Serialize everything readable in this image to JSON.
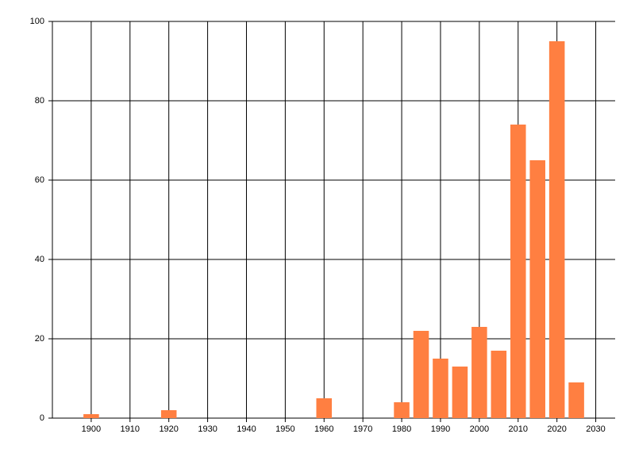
{
  "chart_data": {
    "type": "bar",
    "x": [
      1900,
      1920,
      1960,
      1980,
      1985,
      1990,
      1995,
      2000,
      2005,
      2010,
      2015,
      2020,
      2025
    ],
    "values": [
      1,
      2,
      5,
      4,
      22,
      15,
      13,
      23,
      17,
      74,
      65,
      95,
      9
    ],
    "color": "#ff7f41",
    "xlim": [
      1890,
      2035
    ],
    "ylim": [
      0,
      100
    ],
    "xticks": [
      1900,
      1910,
      1920,
      1930,
      1940,
      1950,
      1960,
      1970,
      1980,
      1990,
      2000,
      2010,
      2020,
      2030
    ],
    "yticks": [
      0,
      20,
      40,
      60,
      80,
      100
    ],
    "grid": true
  }
}
